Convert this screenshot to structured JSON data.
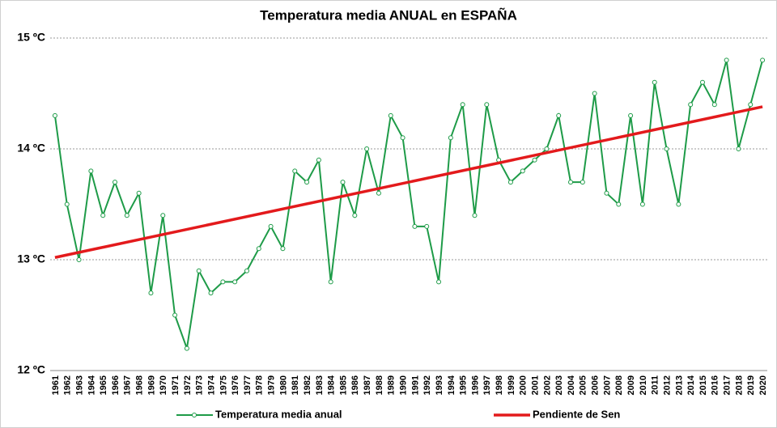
{
  "chart_data": {
    "type": "line",
    "title": "Temperatura media ANUAL en ESPAÑA",
    "x": [
      1961,
      1962,
      1963,
      1964,
      1965,
      1966,
      1967,
      1968,
      1969,
      1970,
      1971,
      1972,
      1973,
      1974,
      1975,
      1976,
      1977,
      1978,
      1979,
      1980,
      1981,
      1982,
      1983,
      1984,
      1985,
      1986,
      1987,
      1988,
      1989,
      1990,
      1991,
      1992,
      1993,
      1994,
      1995,
      1996,
      1997,
      1998,
      1999,
      2000,
      2001,
      2002,
      2003,
      2004,
      2005,
      2006,
      2007,
      2008,
      2009,
      2010,
      2011,
      2012,
      2013,
      2014,
      2015,
      2016,
      2017,
      2018,
      2019,
      2020
    ],
    "series": [
      {
        "name": "Temperatura media anual",
        "color": "#1e9b48",
        "values": [
          14.3,
          13.5,
          13.0,
          13.8,
          13.4,
          13.7,
          13.4,
          13.6,
          12.7,
          13.4,
          12.5,
          12.2,
          12.9,
          12.7,
          12.8,
          12.8,
          12.9,
          13.1,
          13.3,
          13.1,
          13.8,
          13.7,
          13.9,
          12.8,
          13.7,
          13.4,
          14.0,
          13.6,
          14.3,
          14.1,
          13.3,
          13.3,
          12.8,
          14.1,
          14.4,
          13.4,
          14.4,
          13.9,
          13.7,
          13.8,
          13.9,
          14.0,
          14.3,
          13.7,
          13.7,
          14.5,
          13.6,
          13.5,
          14.3,
          13.5,
          14.6,
          14.0,
          13.5,
          14.4,
          14.6,
          14.4,
          14.8,
          14.0,
          14.4,
          14.8
        ]
      },
      {
        "name": "Pendiente de Sen",
        "color": "#e31a1c",
        "x": [
          1961,
          2020
        ],
        "values": [
          13.02,
          14.38
        ]
      }
    ],
    "ylim": [
      12,
      15
    ],
    "yticks": [
      {
        "value": 12,
        "label": "12 ºC"
      },
      {
        "value": 13,
        "label": "13 ºC"
      },
      {
        "value": 14,
        "label": "14 ºC"
      },
      {
        "value": 15,
        "label": "15 ºC"
      }
    ],
    "grid": true,
    "legend": "bottom"
  }
}
